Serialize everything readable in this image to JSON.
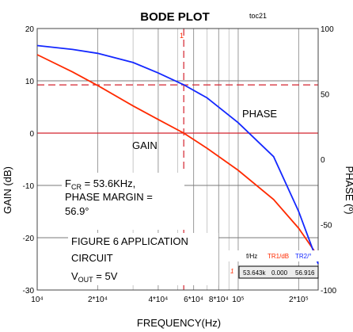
{
  "chart_data": {
    "type": "line",
    "title": "BODE PLOT",
    "tag": "toc21",
    "xlabel": "FREQUENCY(Hz)",
    "ylabel_left": "GAIN (dB)",
    "ylabel_right": "PHASE (º)",
    "x_scale": "log",
    "xlim": [
      10000,
      250000
    ],
    "ylim_left": [
      -30,
      20
    ],
    "ylim_right": [
      -100,
      100
    ],
    "grid": true,
    "x_tick_labels": [
      {
        "x": 10000,
        "label": "10⁴"
      },
      {
        "x": 20000,
        "label": "2*10⁴"
      },
      {
        "x": 40000,
        "label": "4*10⁴"
      },
      {
        "x": 60000,
        "label": "6*10⁴"
      },
      {
        "x": 80000,
        "label": "8*10⁴"
      },
      {
        "x": 100000,
        "label": "10⁵"
      },
      {
        "x": 200000,
        "label": "2*10⁵"
      }
    ],
    "y_left_ticks": [
      20,
      10,
      0,
      -10,
      -20,
      -30
    ],
    "y_right_ticks": [
      100,
      50,
      0,
      -50,
      -100
    ],
    "series": [
      {
        "name": "GAIN",
        "axis": "left",
        "color": "#ff2a00",
        "x": [
          10000,
          15000,
          20000,
          30000,
          40000,
          53600,
          70000,
          100000,
          150000,
          200000,
          250000
        ],
        "y": [
          15,
          11.7,
          9.1,
          5.2,
          2.6,
          0,
          -2.9,
          -7.1,
          -12.7,
          -18.2,
          -23.6
        ]
      },
      {
        "name": "PHASE",
        "axis": "right",
        "color": "#1428ff",
        "x": [
          10000,
          15000,
          20000,
          30000,
          40000,
          53600,
          70000,
          100000,
          150000,
          200000,
          250000
        ],
        "y": [
          87,
          84,
          81,
          74,
          66,
          57,
          47,
          28,
          2,
          -40,
          -80
        ]
      }
    ],
    "crossover_frequency": 53600,
    "phase_margin_level": 56.9,
    "annotations": {
      "phase_label": "PHASE",
      "gain_label": "GAIN",
      "fcr_prefix": "F",
      "fcr_sub": "CR",
      "fcr_value": " = 53.6KHz,",
      "pm_line1": "PHASE MARGIN =",
      "pm_line2": "56.9°",
      "fig_line1": "FIGURE 6 APPLICATION",
      "fig_line2": "CIRCUIT",
      "vout_prefix": "V",
      "vout_sub": "OUT",
      "vout_value": " = 5V",
      "cursor_mark": "1"
    },
    "readout": {
      "headers": [
        "f/Hz",
        "TR1/dB",
        "TR2/°"
      ],
      "row_label": "1",
      "values": [
        "53.643k",
        "0.000",
        "56.916"
      ],
      "header_colors": [
        "#000000",
        "#ff2a00",
        "#1428ff"
      ]
    }
  }
}
